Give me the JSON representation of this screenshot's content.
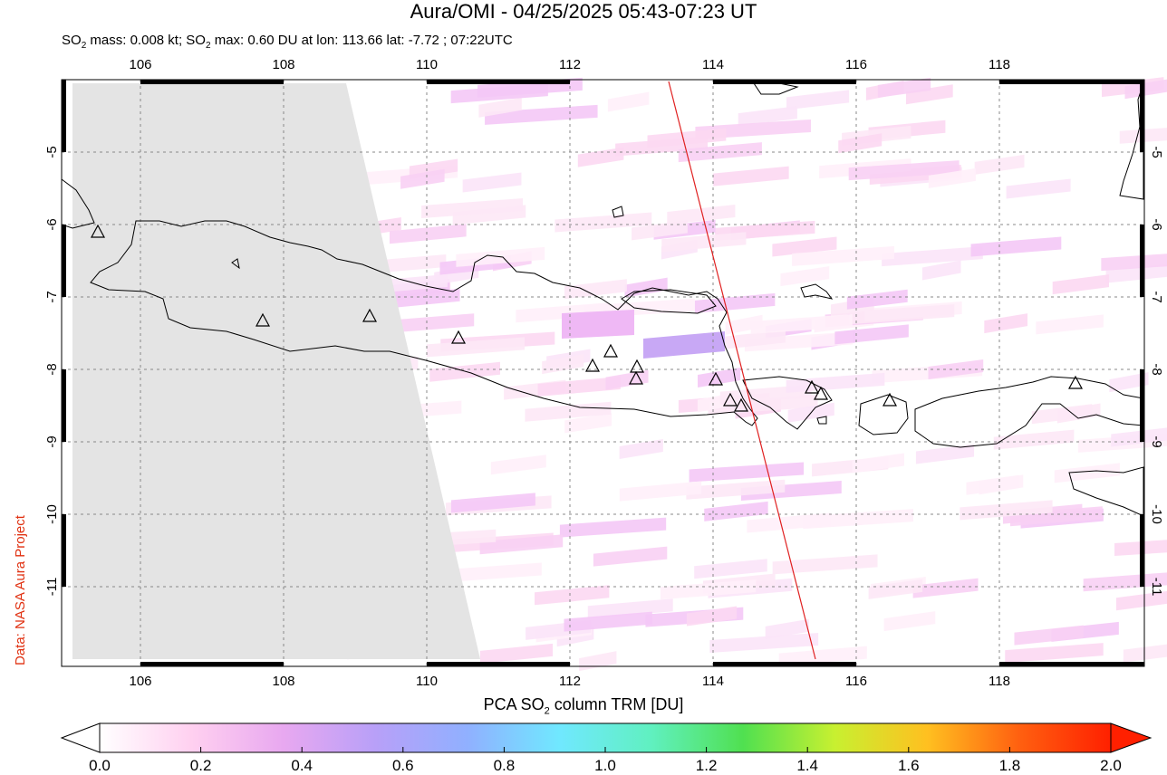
{
  "header": {
    "title": "Aura/OMI - 04/25/2025 05:43-07:23 UT",
    "subtitle_prefix": "SO",
    "subtitle_sub": "2",
    "subtitle_mid": " mass: 0.008 kt; SO",
    "subtitle_sub2": "2",
    "subtitle_rest": " max: 0.60 DU at lon: 113.66 lat: -7.72 ; 07:22UTC"
  },
  "credit": "Data: NASA Aura Project",
  "map": {
    "lon_range": [
      105,
      120
    ],
    "lat_range": [
      -12,
      -4.9
    ],
    "lon_ticks": [
      "106",
      "108",
      "110",
      "112",
      "114",
      "116",
      "118"
    ],
    "lat_ticks": [
      "-5",
      "-6",
      "-7",
      "-8",
      "-9",
      "-10",
      "-11"
    ],
    "volcano_count": 15,
    "orbit_line_color": "#e02020",
    "no_data_color": "#e4e4e4"
  },
  "colorbar": {
    "title_prefix": "PCA SO",
    "title_sub": "2",
    "title_rest": " column TRM [DU]",
    "ticks": [
      "0.0",
      "0.2",
      "0.4",
      "0.6",
      "0.8",
      "1.0",
      "1.2",
      "1.4",
      "1.6",
      "1.8",
      "2.0"
    ],
    "colors": [
      "#ffffff",
      "#ffd0f0",
      "#e8a8f0",
      "#b8a0f8",
      "#90b0ff",
      "#70e8ff",
      "#60f0c0",
      "#50e050",
      "#c8f030",
      "#ffc020",
      "#ff6010",
      "#ff2000"
    ]
  }
}
